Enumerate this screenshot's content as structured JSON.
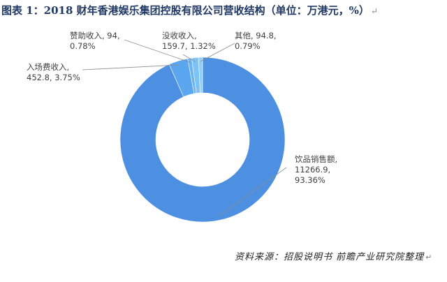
{
  "title": "图表 1：2018 财年香港娱乐集团控股有限公司营收结构（单位：万港元，%）",
  "paragraph_mark": "↵",
  "source": "资料来源：招股说明书  前瞻产业研究院整理",
  "chart_data": {
    "type": "pie",
    "style": "donut",
    "title": "图表 1：2018 财年香港娱乐集团控股有限公司营收结构（单位：万港元，%）",
    "unit": "万港元",
    "categories": [
      "饮品销售额",
      "入场费收入",
      "赞助收入",
      "没收收入",
      "其他"
    ],
    "values": [
      11266.9,
      452.8,
      94,
      159.7,
      94.8
    ],
    "percentages": [
      93.36,
      3.75,
      0.78,
      1.32,
      0.79
    ],
    "labels": [
      {
        "line1": "饮品销售额,",
        "line2": "11266.9,",
        "line3": "93.36%"
      },
      {
        "line1": "入场费收入,",
        "line2": "452.8, 3.75%"
      },
      {
        "line1": "赞助收入, 94,",
        "line2": "0.78%"
      },
      {
        "line1": "没收收入,",
        "line2": "159.7, 1.32%"
      },
      {
        "line1": "其他, 94.8,",
        "line2": "0.79%"
      }
    ],
    "colors": [
      "#4d8fe0",
      "#5aa6ef",
      "#6bb4f2",
      "#7cc2f5",
      "#8ecff7"
    ],
    "legend": "none"
  }
}
